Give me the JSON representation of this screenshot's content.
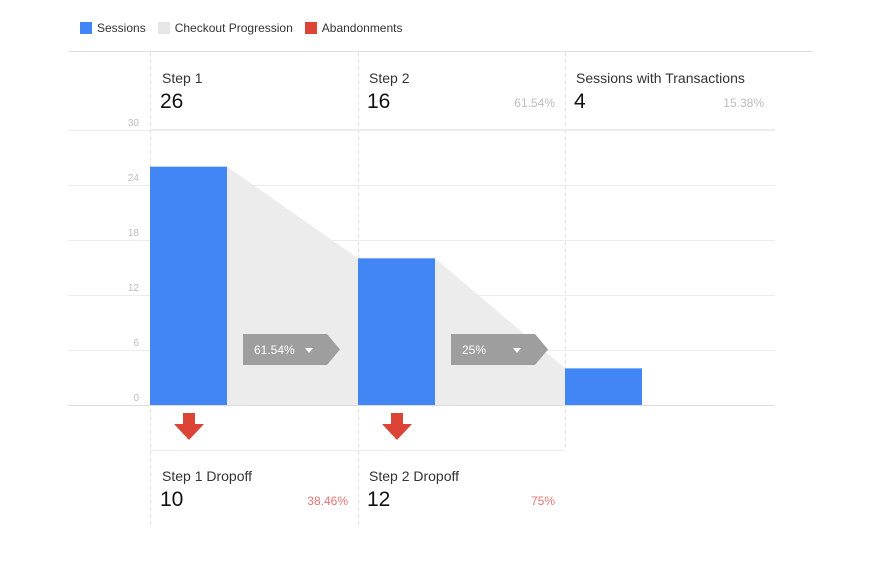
{
  "legend": [
    {
      "label": "Sessions",
      "color": "#4285f4"
    },
    {
      "label": "Checkout Progression",
      "color": "#e6e6e6"
    },
    {
      "label": "Abandonments",
      "color": "#db4437"
    }
  ],
  "steps": [
    {
      "label": "Step 1",
      "value": "26",
      "pct": ""
    },
    {
      "label": "Step 2",
      "value": "16",
      "pct": "61.54%"
    },
    {
      "label": "Sessions with Transactions",
      "value": "4",
      "pct": "15.38%"
    }
  ],
  "progression": [
    {
      "label": "61.54%"
    },
    {
      "label": "25%"
    }
  ],
  "dropoffs": [
    {
      "label": "Step 1 Dropoff",
      "value": "10",
      "pct": "38.46%"
    },
    {
      "label": "Step 2 Dropoff",
      "value": "12",
      "pct": "75%"
    }
  ],
  "chart_data": {
    "type": "bar",
    "categories": [
      "Step 1",
      "Step 2",
      "Sessions with Transactions"
    ],
    "series": [
      {
        "name": "Sessions",
        "values": [
          26,
          16,
          4
        ]
      }
    ],
    "ylim": [
      0,
      30
    ],
    "yticks": [
      "0",
      "6",
      "12",
      "18",
      "24",
      "30"
    ],
    "grid": true,
    "legend_position": "top-left"
  }
}
